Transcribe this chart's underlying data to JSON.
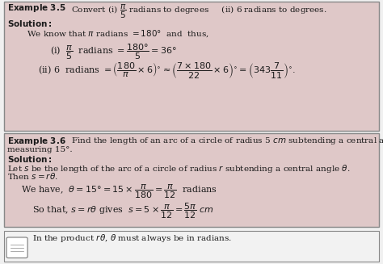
{
  "bg_color": "#e8d0d0",
  "box1_color": "#dfc8c8",
  "box2_color": "#dfc8c8",
  "note_bg": "#f2f2f2",
  "border_color": "#888888",
  "text_color": "#1a1a1a",
  "fig_bg": "#f0f0f0",
  "fig_width": 4.74,
  "fig_height": 3.27,
  "dpi": 100,
  "fs": 7.5
}
